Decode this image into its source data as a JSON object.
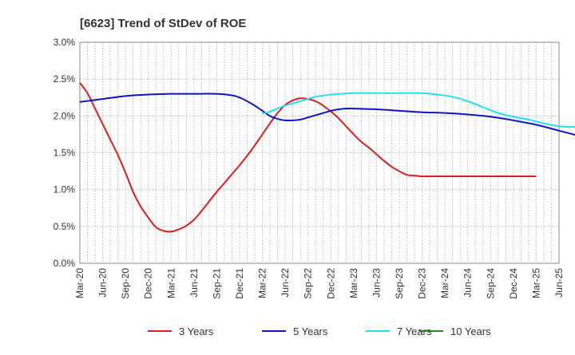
{
  "chart_data": {
    "type": "line",
    "title": "[6623]  Trend of StDev of ROE",
    "xlabel": "",
    "ylabel": "",
    "ylim": [
      0,
      0.03
    ],
    "grid": true,
    "legend_position": "bottom",
    "y_ticks": [
      "0.0%",
      "0.5%",
      "1.0%",
      "1.5%",
      "2.0%",
      "2.5%",
      "3.0%"
    ],
    "x_ticks": [
      "Mar-20",
      "Jun-20",
      "Sep-20",
      "Dec-20",
      "Mar-21",
      "Jun-21",
      "Sep-21",
      "Dec-21",
      "Mar-22",
      "Jun-22",
      "Sep-22",
      "Dec-22",
      "Mar-23",
      "Jun-23",
      "Sep-23",
      "Dec-23",
      "Mar-24",
      "Jun-24",
      "Sep-24",
      "Dec-24",
      "Mar-25",
      "Jun-25"
    ],
    "series": [
      {
        "name": "3 Years",
        "color": "#e31a1c",
        "points": [
          [
            "Mar-20",
            0.0245
          ],
          [
            "Apr-20",
            0.0231
          ],
          [
            "May-20",
            0.021
          ],
          [
            "Jun-20",
            0.0189
          ],
          [
            "Jul-20",
            0.0168
          ],
          [
            "Aug-20",
            0.0147
          ],
          [
            "Sep-20",
            0.0123
          ],
          [
            "Oct-20",
            0.0097
          ],
          [
            "Nov-20",
            0.0077
          ],
          [
            "Dec-20",
            0.0062
          ],
          [
            "Jan-21",
            0.0049
          ],
          [
            "Feb-21",
            0.0044
          ],
          [
            "Mar-21",
            0.0043
          ],
          [
            "Apr-21",
            0.0046
          ],
          [
            "May-21",
            0.0051
          ],
          [
            "Jun-21",
            0.0059
          ],
          [
            "Jul-21",
            0.0071
          ],
          [
            "Aug-21",
            0.0084
          ],
          [
            "Sep-21",
            0.0097
          ],
          [
            "Oct-21",
            0.0109
          ],
          [
            "Nov-21",
            0.0121
          ],
          [
            "Dec-21",
            0.0133
          ],
          [
            "Jan-22",
            0.0146
          ],
          [
            "Feb-22",
            0.016
          ],
          [
            "Mar-22",
            0.0175
          ],
          [
            "Apr-22",
            0.019
          ],
          [
            "May-22",
            0.0204
          ],
          [
            "Jun-22",
            0.0215
          ],
          [
            "Jul-22",
            0.0221
          ],
          [
            "Aug-22",
            0.0224
          ],
          [
            "Sep-22",
            0.0223
          ],
          [
            "Oct-22",
            0.022
          ],
          [
            "Nov-22",
            0.0214
          ],
          [
            "Dec-22",
            0.0206
          ],
          [
            "Jan-23",
            0.0197
          ],
          [
            "Feb-23",
            0.0186
          ],
          [
            "Mar-23",
            0.0175
          ],
          [
            "Apr-23",
            0.0165
          ],
          [
            "May-23",
            0.0157
          ],
          [
            "Jun-23",
            0.0148
          ],
          [
            "Jul-23",
            0.0139
          ],
          [
            "Aug-23",
            0.0131
          ],
          [
            "Sep-23",
            0.0125
          ],
          [
            "Oct-23",
            0.012
          ],
          [
            "Nov-23",
            0.0119
          ],
          [
            "Dec-23",
            0.0118
          ],
          [
            "Jan-24",
            0.0118
          ],
          [
            "Feb-24",
            0.0118
          ],
          [
            "Mar-24",
            0.0118
          ],
          [
            "Apr-24",
            0.0118
          ],
          [
            "May-24",
            0.0118
          ],
          [
            "Jun-24",
            0.0118
          ],
          [
            "Jul-24",
            0.0118
          ],
          [
            "Aug-24",
            0.0118
          ],
          [
            "Sep-24",
            0.0118
          ],
          [
            "Oct-24",
            0.0118
          ],
          [
            "Nov-24",
            0.0118
          ],
          [
            "Dec-24",
            0.0118
          ],
          [
            "Jan-25",
            0.0118
          ],
          [
            "Feb-25",
            0.0118
          ],
          [
            "Mar-25",
            0.0118
          ]
        ]
      },
      {
        "name": "5 Years",
        "color": "#0a14c8",
        "points": [
          [
            "Mar-20",
            0.0219
          ],
          [
            "Jun-20",
            0.0223
          ],
          [
            "Sep-20",
            0.0227
          ],
          [
            "Dec-20",
            0.0229
          ],
          [
            "Mar-21",
            0.023
          ],
          [
            "Jun-21",
            0.023
          ],
          [
            "Sep-21",
            0.023
          ],
          [
            "Nov-21",
            0.0228
          ],
          [
            "Dec-21",
            0.0225
          ],
          [
            "Jan-22",
            0.022
          ],
          [
            "Feb-22",
            0.0214
          ],
          [
            "Mar-22",
            0.0207
          ],
          [
            "Apr-22",
            0.02
          ],
          [
            "May-22",
            0.0196
          ],
          [
            "Jun-22",
            0.0194
          ],
          [
            "Jul-22",
            0.0194
          ],
          [
            "Aug-22",
            0.0195
          ],
          [
            "Sep-22",
            0.0198
          ],
          [
            "Oct-22",
            0.0201
          ],
          [
            "Nov-22",
            0.0204
          ],
          [
            "Dec-22",
            0.0207
          ],
          [
            "Jan-23",
            0.0209
          ],
          [
            "Feb-23",
            0.021
          ],
          [
            "Mar-23",
            0.021
          ],
          [
            "Jun-23",
            0.0209
          ],
          [
            "Sep-23",
            0.0207
          ],
          [
            "Dec-23",
            0.0205
          ],
          [
            "Mar-24",
            0.0204
          ],
          [
            "Jun-24",
            0.0202
          ],
          [
            "Sep-24",
            0.0199
          ],
          [
            "Dec-24",
            0.0194
          ],
          [
            "Mar-25",
            0.0188
          ],
          [
            "Jun-25",
            0.018
          ],
          [
            "Sep-25",
            0.0172
          ]
        ]
      },
      {
        "name": "7 Years",
        "color": "#22e0f0",
        "points": [
          [
            "Mar-22",
            0.0203
          ],
          [
            "Apr-22",
            0.0206
          ],
          [
            "May-22",
            0.021
          ],
          [
            "Jun-22",
            0.0214
          ],
          [
            "Aug-22",
            0.022
          ],
          [
            "Oct-22",
            0.0226
          ],
          [
            "Dec-22",
            0.0229
          ],
          [
            "Mar-23",
            0.0231
          ],
          [
            "Jun-23",
            0.0231
          ],
          [
            "Sep-23",
            0.0231
          ],
          [
            "Dec-23",
            0.0231
          ],
          [
            "Feb-24",
            0.0229
          ],
          [
            "Apr-24",
            0.0226
          ],
          [
            "Jun-24",
            0.022
          ],
          [
            "Aug-24",
            0.0212
          ],
          [
            "Oct-24",
            0.0204
          ],
          [
            "Dec-24",
            0.0199
          ],
          [
            "Feb-25",
            0.0195
          ],
          [
            "Apr-25",
            0.019
          ],
          [
            "Jun-25",
            0.0186
          ],
          [
            "Aug-25",
            0.0185
          ],
          [
            "Sep-25",
            0.0186
          ]
        ]
      },
      {
        "name": "10 Years",
        "color": "#1e8c1e",
        "points": []
      }
    ]
  }
}
